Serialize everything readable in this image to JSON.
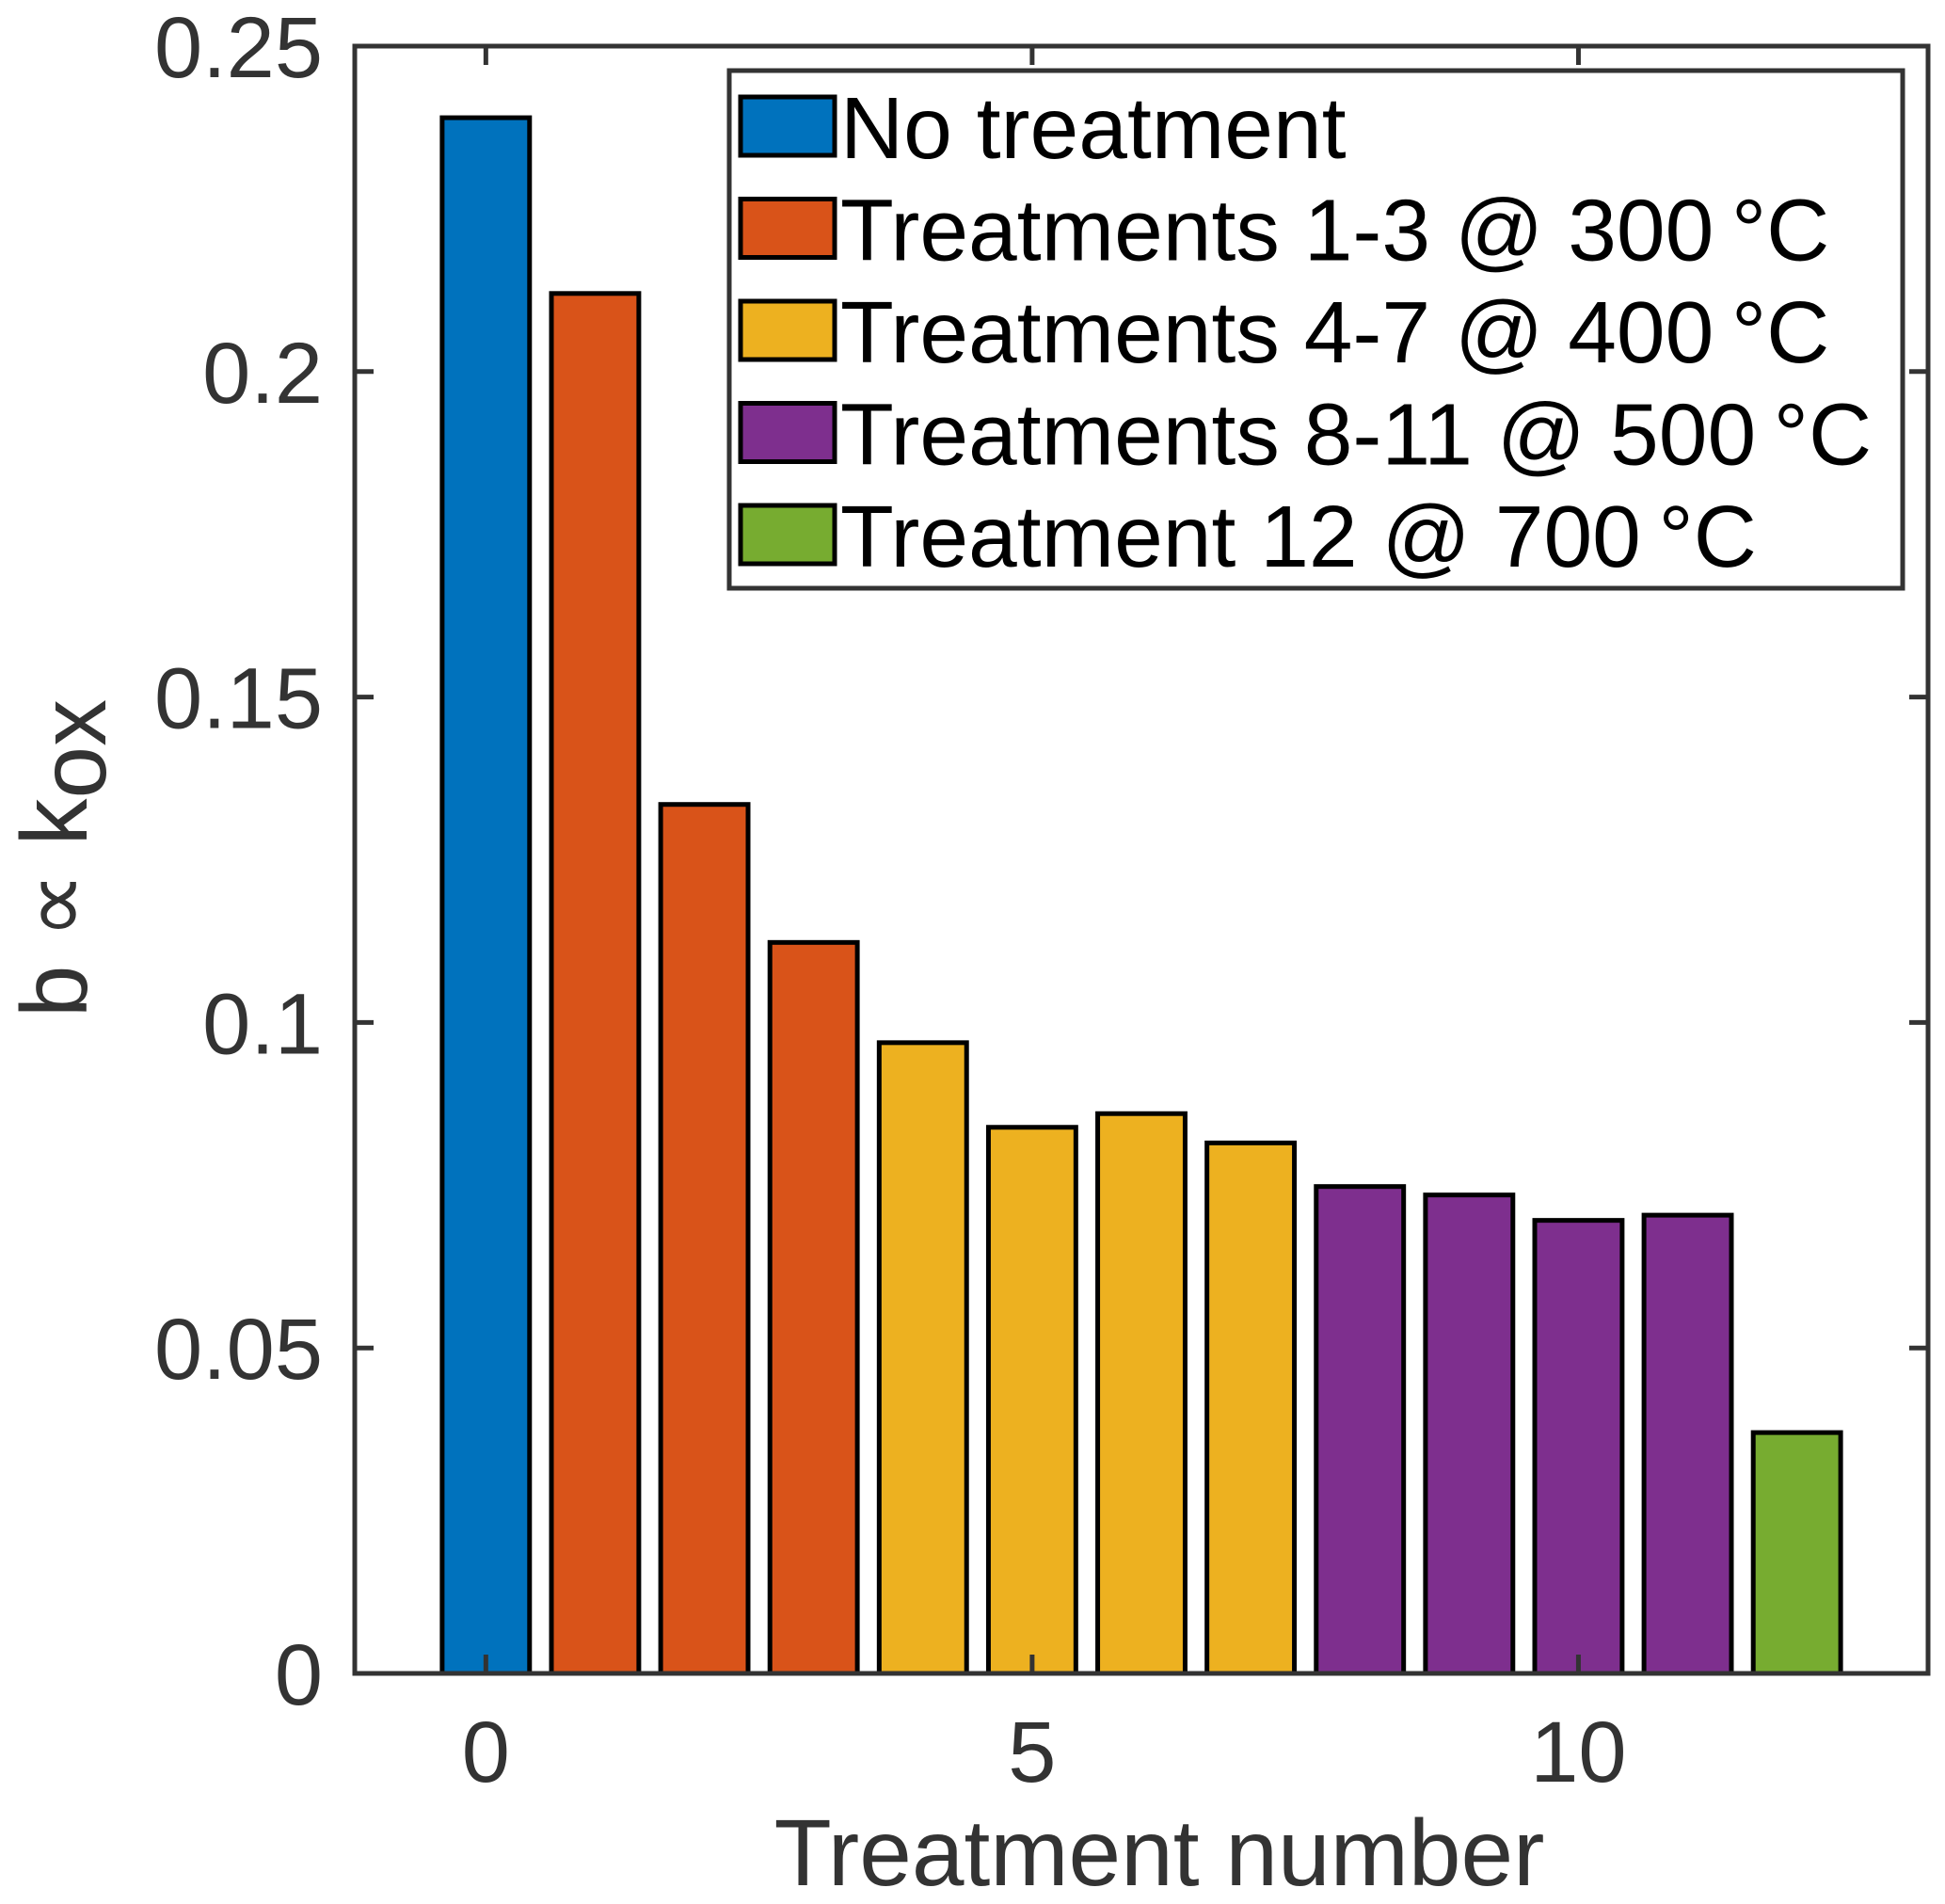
{
  "chart_data": {
    "type": "bar",
    "title": "",
    "xlabel": "Treatment number",
    "ylabel": {
      "main": "b ∝ k",
      "subscript": "ox"
    },
    "xlim": [
      -1.2,
      13.2
    ],
    "ylim": [
      0,
      0.25
    ],
    "xticks": [
      0,
      5,
      10
    ],
    "xtick_labels": [
      "0",
      "5",
      "10"
    ],
    "yticks": [
      0,
      0.05,
      0.1,
      0.15,
      0.2,
      0.25
    ],
    "ytick_labels": [
      "0",
      "0.05",
      "0.1",
      "0.15",
      "0.2",
      "0.25"
    ],
    "grid": false,
    "bar_width": 0.8,
    "x": [
      0,
      1,
      2,
      3,
      4,
      5,
      6,
      7,
      8,
      9,
      10,
      11,
      12
    ],
    "values": [
      0.239,
      0.212,
      0.1335,
      0.1123,
      0.0969,
      0.0839,
      0.086,
      0.0815,
      0.0748,
      0.0735,
      0.0696,
      0.0704,
      0.037
    ],
    "groups": [
      0,
      1,
      1,
      1,
      2,
      2,
      2,
      2,
      3,
      3,
      3,
      3,
      4
    ],
    "legend": {
      "placement": "top-right",
      "entries": [
        {
          "label": "No treatment",
          "color": "#0072BD"
        },
        {
          "label": "Treatments 1-3 @ 300 °C",
          "color": "#D95319"
        },
        {
          "label": "Treatments 4-7 @ 400 °C",
          "color": "#EDB120"
        },
        {
          "label": "Treatments 8-11 @ 500 °C",
          "color": "#7E2F8E"
        },
        {
          "label": "Treatment 12 @ 700 °C",
          "color": "#77AC30"
        }
      ]
    },
    "colors": {
      "axis": "#333333",
      "bar_edge": "#000000",
      "legend_border": "#333333"
    }
  }
}
